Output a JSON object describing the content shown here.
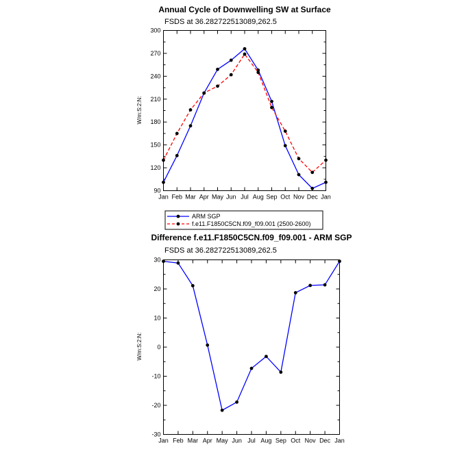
{
  "chart_data": [
    {
      "type": "line",
      "title": "Annual Cycle of Downwelling SW at Surface",
      "subtitle": "FSDS at 36.282722513089,262.5",
      "ylabel": "W/m:S:2:N:",
      "xlabel": "",
      "categories": [
        "Jan",
        "Feb",
        "Mar",
        "Apr",
        "May",
        "Jun",
        "Jul",
        "Aug",
        "Sep",
        "Oct",
        "Nov",
        "Dec",
        "Jan"
      ],
      "ylim": [
        90,
        300
      ],
      "yticks": [
        90,
        120,
        150,
        180,
        210,
        240,
        270,
        300
      ],
      "grid": false,
      "legend": "below",
      "series": [
        {
          "name": "ARM SGP",
          "color": "#0000ff",
          "dash": "solid",
          "values": [
            101,
            136,
            175,
            218,
            249,
            261,
            276,
            248,
            207,
            149,
            111,
            93,
            101
          ]
        },
        {
          "name": "f.e11.F1850C5CN.f09_f09.001 (2500-2600)",
          "color": "#ff0000",
          "dash": "dashed",
          "values": [
            130,
            165,
            196,
            218,
            227,
            242,
            269,
            245,
            199,
            168,
            132,
            114,
            130
          ]
        }
      ]
    },
    {
      "type": "line",
      "title": "Difference f.e11.F1850C5CN.f09_f09.001 - ARM SGP",
      "subtitle": "FSDS at 36.282722513089,262.5",
      "ylabel": "W/m:S:2:N:",
      "xlabel": "",
      "categories": [
        "Jan",
        "Feb",
        "Mar",
        "Apr",
        "May",
        "Jun",
        "Jul",
        "Aug",
        "Sep",
        "Oct",
        "Nov",
        "Dec",
        "Jan"
      ],
      "ylim": [
        -30,
        30
      ],
      "yticks": [
        -30,
        -20,
        -10,
        0,
        10,
        20,
        30
      ],
      "grid": false,
      "series": [
        {
          "color": "#0000ff",
          "dash": "solid",
          "values": [
            29.5,
            28.9,
            21.1,
            0.7,
            -21.7,
            -18.9,
            -7.3,
            -3.2,
            -8.6,
            18.7,
            21.2,
            21.4,
            29.5
          ]
        }
      ]
    }
  ]
}
